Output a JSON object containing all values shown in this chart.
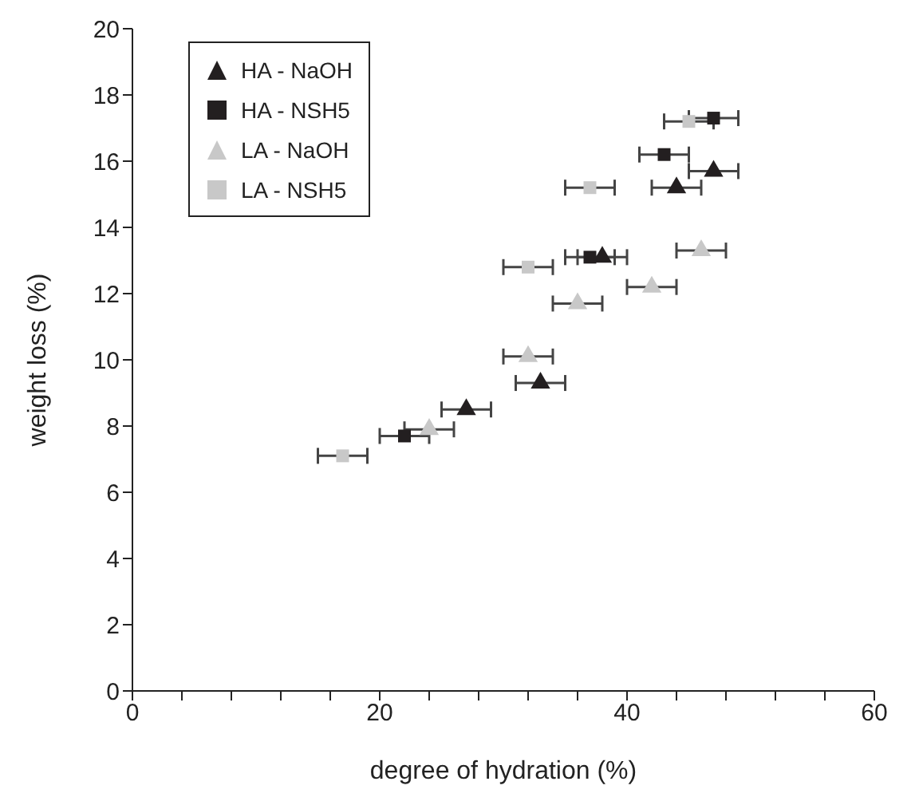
{
  "chart_data": {
    "type": "scatter",
    "xlabel": "degree of hydration (%)",
    "ylabel": "weight loss (%)",
    "xlim": [
      0,
      60
    ],
    "xticks": [
      0,
      {
        "value": 4,
        "label": null
      },
      {
        "value": 8,
        "label": null
      },
      {
        "value": 12,
        "label": null
      },
      {
        "value": 16,
        "label": null
      },
      20,
      {
        "value": 24,
        "label": null
      },
      {
        "value": 28,
        "label": null
      },
      {
        "value": 32,
        "label": null
      },
      {
        "value": 36,
        "label": null
      },
      40,
      {
        "value": 44,
        "label": null
      },
      {
        "value": 48,
        "label": null
      },
      {
        "value": 52,
        "label": null
      },
      {
        "value": 56,
        "label": null
      },
      60
    ],
    "ylim": [
      0,
      20
    ],
    "yticks": [
      0,
      2,
      4,
      6,
      8,
      10,
      12,
      14,
      16,
      18,
      20
    ],
    "grid": false,
    "legend": "top left",
    "series": [
      {
        "name": "HA - NaOH",
        "color": "#231f20",
        "marker": "triangle",
        "x": [
          27,
          33,
          38,
          44,
          47
        ],
        "values": [
          8.5,
          9.3,
          13.1,
          15.2,
          15.7
        ],
        "xerrors": [
          2,
          2,
          2,
          2,
          2
        ]
      },
      {
        "name": "HA - NSH5",
        "color": "#231f20",
        "marker": "square",
        "x": [
          22,
          37,
          43,
          47
        ],
        "values": [
          7.7,
          13.1,
          16.2,
          17.3
        ],
        "xerrors": [
          2,
          2,
          2,
          2
        ]
      },
      {
        "name": "LA - NaOH",
        "color": "#c8c8c8",
        "marker": "triangle",
        "x": [
          24,
          32,
          36,
          42,
          46
        ],
        "values": [
          7.9,
          10.1,
          11.7,
          12.2,
          13.3
        ],
        "xerrors": [
          2,
          2,
          2,
          2,
          2
        ]
      },
      {
        "name": "LA - NSH5",
        "color": "#c8c8c8",
        "marker": "square",
        "x": [
          17,
          32,
          37,
          45
        ],
        "values": [
          7.1,
          12.8,
          15.2,
          17.2
        ],
        "xerrors": [
          2,
          2,
          2,
          2
        ]
      }
    ]
  }
}
